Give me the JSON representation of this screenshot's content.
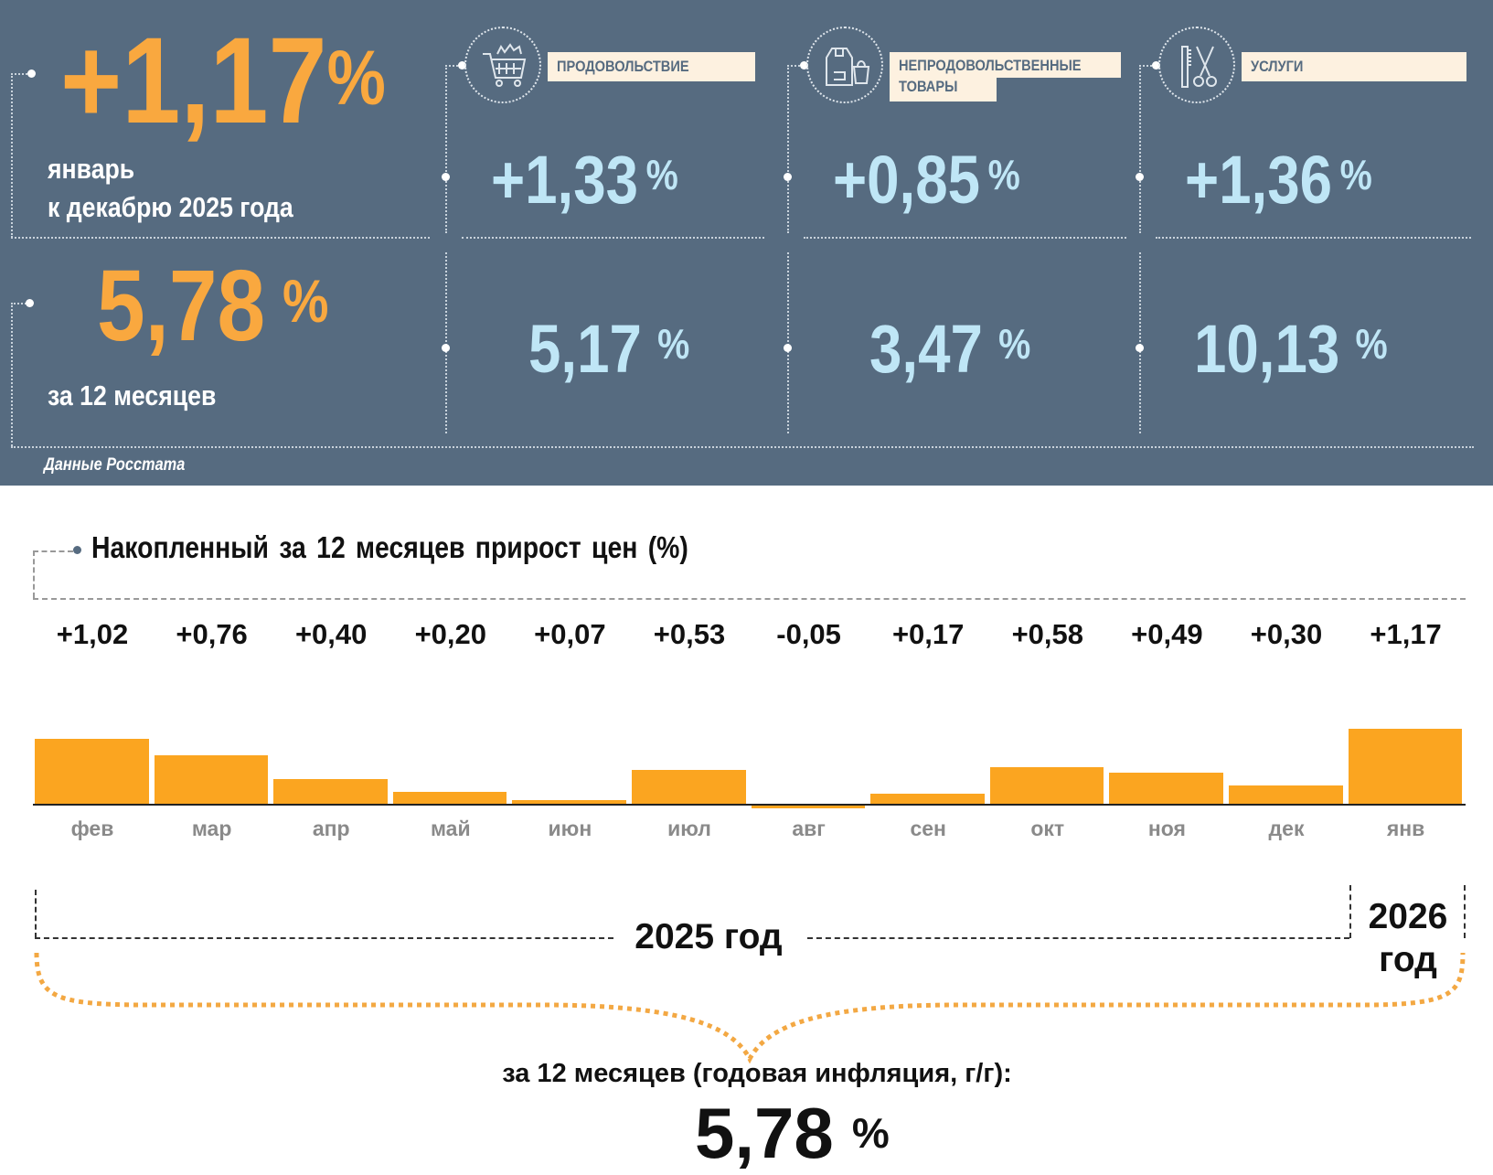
{
  "header": {
    "main_value": "+1,17",
    "percent": "%",
    "main_caption_1": "январь",
    "main_caption_2": "к декабрю 2025 года",
    "annual_value": "5,78",
    "annual_caption": "за 12 месяцев",
    "source": "Данные Росстата",
    "categories": [
      {
        "label": "ПРОДОВОЛЬСТВИЕ",
        "icon": "shopping-cart-icon",
        "monthly": "+1,33",
        "annual": "5,17"
      },
      {
        "label_1": "НЕПРОДОВОЛЬСТВЕННЫЕ",
        "label_2": "ТОВАРЫ",
        "icon": "clothing-bag-icon",
        "monthly": "+0,85",
        "annual": "3,47"
      },
      {
        "label": "УСЛУГИ",
        "icon": "comb-scissors-icon",
        "monthly": "+1,36",
        "annual": "10,13"
      }
    ]
  },
  "colors": {
    "panel": "#566b80",
    "accent": "#f9a83f",
    "value": "#bfe6f6",
    "bar": "#fba520"
  },
  "chart_data": {
    "type": "bar",
    "title": "Накопленный за 12 месяцев прирост цен (%)",
    "categories": [
      "фев",
      "мар",
      "апр",
      "май",
      "июн",
      "июл",
      "авг",
      "сен",
      "окт",
      "ноя",
      "дек",
      "янв"
    ],
    "values": [
      1.02,
      0.76,
      0.4,
      0.2,
      0.07,
      0.53,
      -0.05,
      0.17,
      0.58,
      0.49,
      0.3,
      1.17
    ],
    "value_labels": [
      "+1,02",
      "+0,76",
      "+0,40",
      "+0,20",
      "+0,07",
      "+0,53",
      "-0,05",
      "+0,17",
      "+0,58",
      "+0,49",
      "+0,30",
      "+1,17"
    ],
    "xlabel": "",
    "ylabel": "",
    "grid": false
  },
  "footer": {
    "year_2025": "2025 год",
    "year_2026_1": "2026",
    "year_2026_2": "год",
    "caption": "за 12 месяцев (годовая инфляция, г/г):",
    "value": "5,78",
    "percent": "%"
  }
}
